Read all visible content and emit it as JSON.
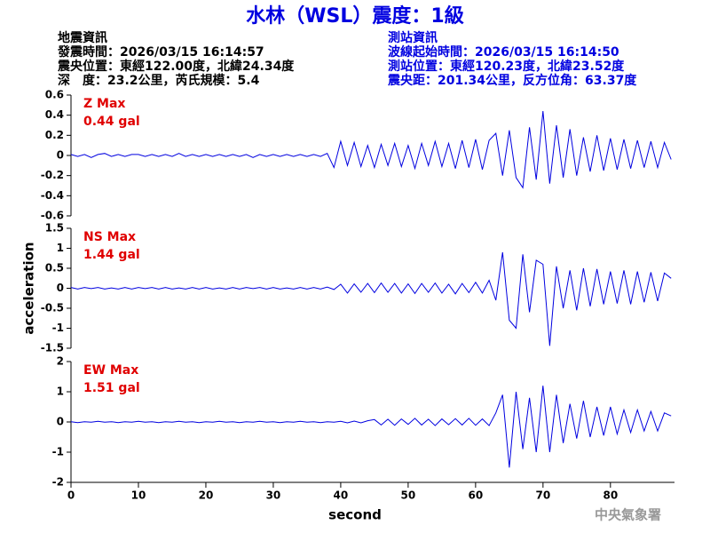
{
  "title": "水林（WSL）震度：1級",
  "header": {
    "left": [
      "地震資訊",
      "發震時間：2026/03/15 16:14:57",
      "震央位置：東經122.00度，北緯24.34度",
      "深　度：23.2公里，芮氏規模：5.4"
    ],
    "right": [
      "測站資訊",
      "波線起始時間：2026/03/15 16:14:50",
      "測站位置：東經120.23度，北緯23.52度",
      "震央距：201.34公里，反方位角：63.37度"
    ]
  },
  "footer": "中央氣象署",
  "chart_data": [
    {
      "type": "line",
      "annotations": [
        "Z Max",
        "0.44 gal"
      ],
      "color": "#0000e0",
      "x": [
        0,
        1,
        2,
        3,
        4,
        5,
        6,
        7,
        8,
        9,
        10,
        11,
        12,
        13,
        14,
        15,
        16,
        17,
        18,
        19,
        20,
        21,
        22,
        23,
        24,
        25,
        26,
        27,
        28,
        29,
        30,
        31,
        32,
        33,
        34,
        35,
        36,
        37,
        38,
        39,
        40,
        41,
        42,
        43,
        44,
        45,
        46,
        47,
        48,
        49,
        50,
        51,
        52,
        53,
        54,
        55,
        56,
        57,
        58,
        59,
        60,
        61,
        62,
        63,
        64,
        65,
        66,
        67,
        68,
        69,
        70,
        71,
        72,
        73,
        74,
        75,
        76,
        77,
        78,
        79,
        80,
        81,
        82,
        83,
        84,
        85,
        86,
        87,
        88,
        89
      ],
      "values": [
        0.01,
        -0.01,
        0.01,
        -0.02,
        0.01,
        0.02,
        -0.01,
        0.01,
        -0.01,
        0.01,
        0.01,
        -0.01,
        0.01,
        -0.01,
        0.01,
        -0.01,
        0.02,
        -0.01,
        0.01,
        -0.01,
        0.01,
        -0.01,
        0.01,
        -0.01,
        0.01,
        -0.01,
        0.01,
        -0.02,
        0.01,
        -0.01,
        0.01,
        -0.01,
        0.01,
        -0.01,
        0.01,
        -0.01,
        0.01,
        -0.01,
        0.02,
        -0.12,
        0.14,
        -0.1,
        0.13,
        -0.11,
        0.1,
        -0.12,
        0.11,
        -0.1,
        0.12,
        -0.11,
        0.1,
        -0.13,
        0.12,
        -0.1,
        0.14,
        -0.11,
        0.12,
        -0.13,
        0.15,
        -0.12,
        0.16,
        -0.14,
        0.15,
        0.22,
        -0.2,
        0.25,
        -0.22,
        -0.32,
        0.28,
        -0.24,
        0.44,
        -0.28,
        0.3,
        -0.22,
        0.26,
        -0.2,
        0.18,
        -0.16,
        0.2,
        -0.15,
        0.17,
        -0.14,
        0.16,
        -0.13,
        0.15,
        -0.12,
        0.14,
        -0.12,
        0.13,
        -0.04
      ],
      "xlim": [
        0,
        89.5
      ],
      "ylim": [
        -0.6,
        0.6
      ],
      "yticks": [
        0.6,
        0.4,
        0.2,
        0,
        -0.2,
        -0.4,
        -0.6
      ]
    },
    {
      "type": "line",
      "annotations": [
        "NS Max",
        "1.44 gal"
      ],
      "color": "#0000e0",
      "ylabel": "acceleration",
      "x": [
        0,
        1,
        2,
        3,
        4,
        5,
        6,
        7,
        8,
        9,
        10,
        11,
        12,
        13,
        14,
        15,
        16,
        17,
        18,
        19,
        20,
        21,
        22,
        23,
        24,
        25,
        26,
        27,
        28,
        29,
        30,
        31,
        32,
        33,
        34,
        35,
        36,
        37,
        38,
        39,
        40,
        41,
        42,
        43,
        44,
        45,
        46,
        47,
        48,
        49,
        50,
        51,
        52,
        53,
        54,
        55,
        56,
        57,
        58,
        59,
        60,
        61,
        62,
        63,
        64,
        65,
        66,
        67,
        68,
        69,
        70,
        71,
        72,
        73,
        74,
        75,
        76,
        77,
        78,
        79,
        80,
        81,
        82,
        83,
        84,
        85,
        86,
        87,
        88,
        89
      ],
      "values": [
        0.02,
        -0.02,
        0.02,
        -0.01,
        0.02,
        -0.02,
        0.01,
        -0.02,
        0.02,
        -0.02,
        0.02,
        -0.01,
        0.02,
        -0.02,
        0.02,
        -0.02,
        0.01,
        -0.02,
        0.02,
        -0.02,
        0.02,
        -0.02,
        0.01,
        -0.02,
        0.02,
        -0.02,
        0.02,
        -0.01,
        0.02,
        -0.02,
        0.02,
        -0.02,
        0.01,
        -0.02,
        0.02,
        -0.02,
        0.02,
        -0.02,
        0.03,
        -0.03,
        0.1,
        -0.12,
        0.11,
        -0.1,
        0.12,
        -0.11,
        0.13,
        -0.1,
        0.12,
        -0.12,
        0.11,
        -0.13,
        0.12,
        -0.1,
        0.13,
        -0.12,
        0.1,
        -0.14,
        0.12,
        -0.11,
        0.15,
        -0.12,
        0.2,
        -0.3,
        0.9,
        -0.8,
        -1.0,
        0.85,
        -0.6,
        0.7,
        0.6,
        -1.44,
        0.55,
        -0.5,
        0.45,
        -0.55,
        0.5,
        -0.45,
        0.48,
        -0.4,
        0.42,
        -0.38,
        0.45,
        -0.4,
        0.42,
        -0.35,
        0.4,
        -0.32,
        0.38,
        0.25
      ],
      "xlim": [
        0,
        89.5
      ],
      "ylim": [
        -1.5,
        1.5
      ],
      "yticks": [
        1.5,
        1,
        0.5,
        0,
        -0.5,
        -1,
        -1.5
      ]
    },
    {
      "type": "line",
      "annotations": [
        "EW Max",
        "1.51 gal"
      ],
      "color": "#0000e0",
      "xlabel": "second",
      "x": [
        0,
        1,
        2,
        3,
        4,
        5,
        6,
        7,
        8,
        9,
        10,
        11,
        12,
        13,
        14,
        15,
        16,
        17,
        18,
        19,
        20,
        21,
        22,
        23,
        24,
        25,
        26,
        27,
        28,
        29,
        30,
        31,
        32,
        33,
        34,
        35,
        36,
        37,
        38,
        39,
        40,
        41,
        42,
        43,
        44,
        45,
        46,
        47,
        48,
        49,
        50,
        51,
        52,
        53,
        54,
        55,
        56,
        57,
        58,
        59,
        60,
        61,
        62,
        63,
        64,
        65,
        66,
        67,
        68,
        69,
        70,
        71,
        72,
        73,
        74,
        75,
        76,
        77,
        78,
        79,
        80,
        81,
        82,
        83,
        84,
        85,
        86,
        87,
        88,
        89
      ],
      "values": [
        0.01,
        -0.02,
        0.01,
        -0.01,
        0.02,
        -0.01,
        0.01,
        -0.02,
        0.01,
        -0.01,
        0.02,
        -0.01,
        0.01,
        -0.02,
        0.01,
        -0.01,
        0.02,
        -0.01,
        0.01,
        -0.02,
        0.01,
        -0.01,
        0.02,
        -0.01,
        0.01,
        -0.02,
        0.01,
        -0.01,
        0.02,
        -0.01,
        0.01,
        -0.02,
        0.01,
        -0.01,
        0.02,
        -0.01,
        0.01,
        -0.02,
        0.01,
        -0.01,
        0.02,
        -0.03,
        0.03,
        -0.03,
        0.04,
        0.08,
        -0.1,
        0.09,
        -0.11,
        0.1,
        -0.08,
        0.12,
        -0.1,
        0.09,
        -0.12,
        0.1,
        -0.09,
        0.11,
        -0.1,
        0.12,
        -0.11,
        0.1,
        -0.12,
        0.3,
        0.9,
        -1.51,
        1.0,
        -0.9,
        0.8,
        -1.0,
        1.2,
        -1.0,
        0.9,
        -0.7,
        0.6,
        -0.55,
        0.7,
        -0.5,
        0.5,
        -0.45,
        0.5,
        -0.4,
        0.4,
        -0.35,
        0.4,
        -0.3,
        0.35,
        -0.3,
        0.3,
        0.2
      ],
      "xlim": [
        0,
        89.5
      ],
      "xticks": [
        0,
        10,
        20,
        30,
        40,
        50,
        60,
        70,
        80
      ],
      "ylim": [
        -2,
        2
      ],
      "yticks": [
        2,
        1,
        0,
        -1,
        -2
      ]
    }
  ]
}
